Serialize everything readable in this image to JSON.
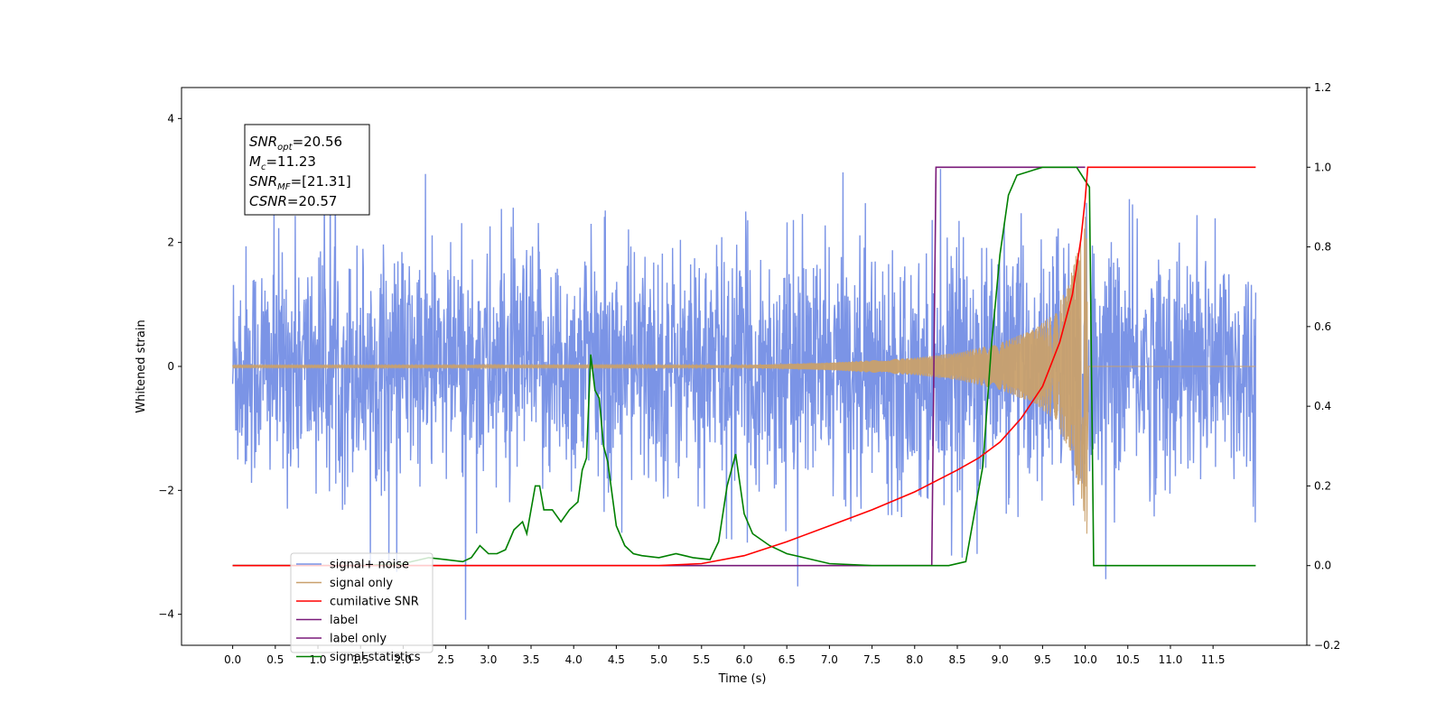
{
  "chart_data": {
    "type": "line",
    "title": "",
    "xlabel": "Time (s)",
    "ylabel": "Whitened strain",
    "xlim": [
      -0.6,
      12.6
    ],
    "ylim": [
      -4.5,
      4.5
    ],
    "y2lim": [
      -0.2,
      1.2
    ],
    "x_ticks": [
      0.0,
      0.5,
      1.0,
      1.5,
      2.0,
      2.5,
      3.0,
      3.5,
      4.0,
      4.5,
      5.0,
      5.5,
      6.0,
      6.5,
      7.0,
      7.5,
      8.0,
      8.5,
      9.0,
      9.5,
      10.0,
      10.5,
      11.0,
      11.5
    ],
    "x_tick_labels": [
      "0.0",
      "0.5",
      "1.0",
      "1.5",
      "2.0",
      "2.5",
      "3.0",
      "3.5",
      "4.0",
      "4.5",
      "5.0",
      "5.5",
      "6.0",
      "6.5",
      "7.0",
      "7.5",
      "8.0",
      "8.5",
      "9.0",
      "9.5",
      "10.0",
      "10.5",
      "11.0",
      "11.5"
    ],
    "y_ticks": [
      -4,
      -2,
      0,
      2,
      4
    ],
    "y_tick_labels": [
      "−4",
      "−2",
      "0",
      "2",
      "4"
    ],
    "y2_ticks": [
      -0.2,
      0.0,
      0.2,
      0.4,
      0.6,
      0.8,
      1.0,
      1.2
    ],
    "y2_tick_labels": [
      "−0.2",
      "0.0",
      "0.2",
      "0.4",
      "0.6",
      "0.8",
      "1.0",
      "1.2"
    ],
    "grid": false,
    "legend_placement": "lower-left",
    "annotation": {
      "lines": [
        {
          "base": "SNR",
          "sub": "opt",
          "rest": "=20.56"
        },
        {
          "base": "M",
          "sub": "c",
          "rest": "=11.23"
        },
        {
          "base": "SNR",
          "sub": "MF",
          "rest": "=[21.31]"
        },
        {
          "base": "CSNR",
          "sub": "",
          "rest": "=20.57"
        }
      ]
    },
    "series": [
      {
        "name": "signal+ noise",
        "axis": "left",
        "color": "#7b94e6",
        "x_range": [
          0.0,
          12.0
        ],
        "noise_sigma": 0.95,
        "envelope": "chirp merging at 10.0 s"
      },
      {
        "name": "signal only",
        "axis": "left",
        "color": "#c9a06c",
        "x_range": [
          0.0,
          12.0
        ],
        "envelope": [
          [
            6.0,
            0.02
          ],
          [
            7.0,
            0.06
          ],
          [
            8.0,
            0.14
          ],
          [
            8.5,
            0.22
          ],
          [
            9.0,
            0.38
          ],
          [
            9.4,
            0.6
          ],
          [
            9.6,
            0.82
          ],
          [
            9.8,
            1.3
          ],
          [
            9.95,
            2.1
          ],
          [
            10.02,
            2.7
          ],
          [
            10.04,
            0.0
          ]
        ]
      },
      {
        "name": "cumilative SNR",
        "axis": "right",
        "color": "#ff0000",
        "points": [
          [
            0.0,
            0.0
          ],
          [
            5.0,
            0.0
          ],
          [
            5.5,
            0.005
          ],
          [
            6.0,
            0.025
          ],
          [
            6.5,
            0.06
          ],
          [
            7.0,
            0.1
          ],
          [
            7.5,
            0.14
          ],
          [
            8.0,
            0.185
          ],
          [
            8.5,
            0.24
          ],
          [
            8.75,
            0.27
          ],
          [
            9.0,
            0.31
          ],
          [
            9.25,
            0.37
          ],
          [
            9.5,
            0.45
          ],
          [
            9.7,
            0.56
          ],
          [
            9.85,
            0.68
          ],
          [
            9.95,
            0.82
          ],
          [
            10.0,
            0.92
          ],
          [
            10.03,
            1.0
          ],
          [
            12.0,
            1.0
          ]
        ]
      },
      {
        "name": "label",
        "axis": "right",
        "color": "#7a1a7a",
        "points": [
          [
            0.0,
            0.0
          ],
          [
            8.2,
            0.0
          ],
          [
            8.25,
            1.0
          ],
          [
            10.0,
            1.0
          ]
        ]
      },
      {
        "name": "label only",
        "axis": "right",
        "color": "#7a1a7a",
        "points": []
      },
      {
        "name": "signal statistics",
        "axis": "right",
        "color": "#008000",
        "points": [
          [
            0.0,
            0.0
          ],
          [
            1.0,
            0.0
          ],
          [
            1.5,
            0.0
          ],
          [
            2.0,
            0.005
          ],
          [
            2.3,
            0.02
          ],
          [
            2.5,
            0.015
          ],
          [
            2.7,
            0.01
          ],
          [
            2.8,
            0.02
          ],
          [
            2.9,
            0.05
          ],
          [
            3.0,
            0.03
          ],
          [
            3.1,
            0.03
          ],
          [
            3.2,
            0.04
          ],
          [
            3.3,
            0.09
          ],
          [
            3.4,
            0.11
          ],
          [
            3.45,
            0.08
          ],
          [
            3.55,
            0.2
          ],
          [
            3.6,
            0.2
          ],
          [
            3.65,
            0.14
          ],
          [
            3.75,
            0.14
          ],
          [
            3.85,
            0.11
          ],
          [
            3.95,
            0.14
          ],
          [
            4.05,
            0.16
          ],
          [
            4.1,
            0.24
          ],
          [
            4.15,
            0.27
          ],
          [
            4.2,
            0.53
          ],
          [
            4.25,
            0.44
          ],
          [
            4.3,
            0.42
          ],
          [
            4.35,
            0.3
          ],
          [
            4.4,
            0.26
          ],
          [
            4.5,
            0.1
          ],
          [
            4.6,
            0.05
          ],
          [
            4.7,
            0.03
          ],
          [
            4.8,
            0.025
          ],
          [
            5.0,
            0.02
          ],
          [
            5.2,
            0.03
          ],
          [
            5.4,
            0.02
          ],
          [
            5.6,
            0.015
          ],
          [
            5.7,
            0.06
          ],
          [
            5.8,
            0.2
          ],
          [
            5.9,
            0.28
          ],
          [
            6.0,
            0.13
          ],
          [
            6.1,
            0.08
          ],
          [
            6.3,
            0.05
          ],
          [
            6.5,
            0.03
          ],
          [
            6.7,
            0.02
          ],
          [
            7.0,
            0.005
          ],
          [
            7.5,
            0.0
          ],
          [
            8.0,
            0.0
          ],
          [
            8.4,
            0.0
          ],
          [
            8.6,
            0.01
          ],
          [
            8.8,
            0.25
          ],
          [
            8.9,
            0.55
          ],
          [
            9.0,
            0.78
          ],
          [
            9.1,
            0.93
          ],
          [
            9.2,
            0.98
          ],
          [
            9.5,
            1.0
          ],
          [
            9.9,
            1.0
          ],
          [
            10.05,
            0.95
          ],
          [
            10.1,
            0.0
          ],
          [
            12.0,
            0.0
          ]
        ]
      }
    ]
  }
}
